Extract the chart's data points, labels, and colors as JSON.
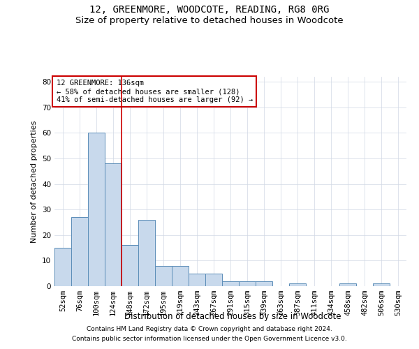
{
  "title_line1": "12, GREENMORE, WOODCOTE, READING, RG8 0RG",
  "title_line2": "Size of property relative to detached houses in Woodcote",
  "xlabel": "Distribution of detached houses by size in Woodcote",
  "ylabel": "Number of detached properties",
  "categories": [
    "52sqm",
    "76sqm",
    "100sqm",
    "124sqm",
    "148sqm",
    "172sqm",
    "195sqm",
    "219sqm",
    "243sqm",
    "267sqm",
    "291sqm",
    "315sqm",
    "339sqm",
    "363sqm",
    "387sqm",
    "411sqm",
    "434sqm",
    "458sqm",
    "482sqm",
    "506sqm",
    "530sqm"
  ],
  "values": [
    15,
    27,
    60,
    48,
    16,
    26,
    8,
    8,
    5,
    5,
    2,
    2,
    2,
    0,
    1,
    0,
    0,
    1,
    0,
    1,
    0
  ],
  "bar_color": "#c8d9ec",
  "bar_edge_color": "#5b8db8",
  "grid_color": "#d0d8e4",
  "red_line_x": 3.5,
  "annotation_text_line1": "12 GREENMORE: 136sqm",
  "annotation_text_line2": "← 58% of detached houses are smaller (128)",
  "annotation_text_line3": "41% of semi-detached houses are larger (92) →",
  "annotation_box_facecolor": "#ffffff",
  "annotation_box_edgecolor": "#cc0000",
  "red_line_color": "#cc0000",
  "ylim": [
    0,
    82
  ],
  "yticks": [
    0,
    10,
    20,
    30,
    40,
    50,
    60,
    70,
    80
  ],
  "footnote1": "Contains HM Land Registry data © Crown copyright and database right 2024.",
  "footnote2": "Contains public sector information licensed under the Open Government Licence v3.0.",
  "title1_fontsize": 10,
  "title2_fontsize": 9.5,
  "xlabel_fontsize": 8.5,
  "ylabel_fontsize": 8,
  "tick_fontsize": 7.5,
  "footnote_fontsize": 6.5,
  "annotation_fontsize": 7.5
}
